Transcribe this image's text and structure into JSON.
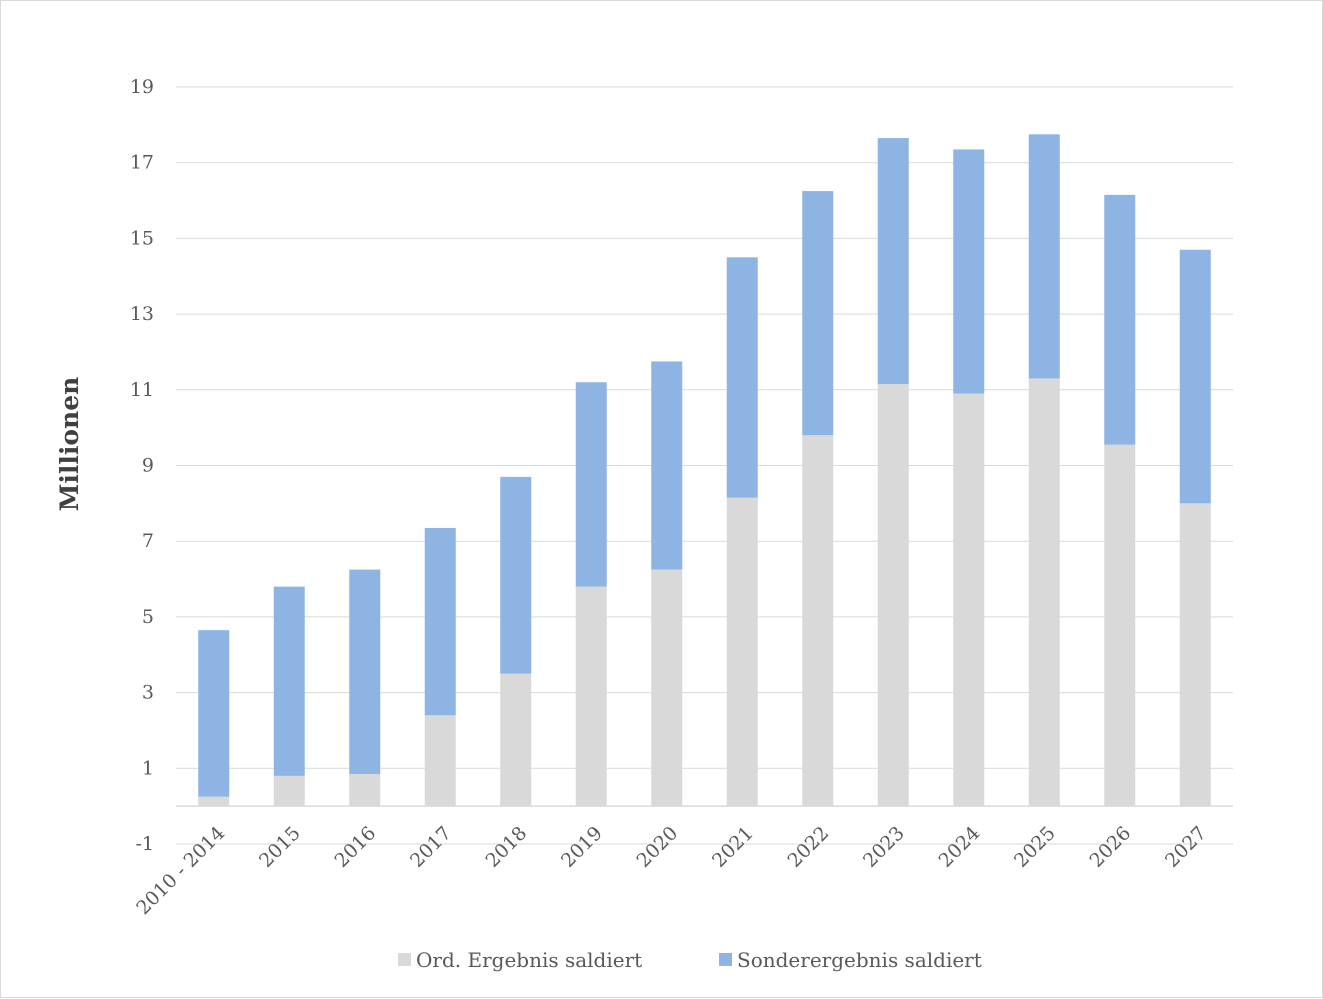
{
  "chart_data": {
    "type": "bar",
    "stacked": true,
    "title": "",
    "xlabel": "",
    "ylabel": "Millionen",
    "ylim": [
      -1,
      19
    ],
    "yticks": [
      -1,
      1,
      3,
      5,
      7,
      9,
      11,
      13,
      15,
      17,
      19
    ],
    "grid": true,
    "legend_position": "bottom",
    "categories": [
      "2010 - 2014",
      "2015",
      "2016",
      "2017",
      "2018",
      "2019",
      "2020",
      "2021",
      "2022",
      "2023",
      "2024",
      "2025",
      "2026",
      "2027"
    ],
    "series": [
      {
        "name": "Ord. Ergebnis saldiert",
        "color": "#d9d9d9",
        "values": [
          0.25,
          0.8,
          0.85,
          2.4,
          3.5,
          5.8,
          6.25,
          8.15,
          9.8,
          11.15,
          10.9,
          11.3,
          9.55,
          8.0
        ]
      },
      {
        "name": "Sonderergebnis saldiert",
        "color": "#8eb4e3",
        "values": [
          4.4,
          5.0,
          5.4,
          4.95,
          5.2,
          5.4,
          5.5,
          6.35,
          6.45,
          6.5,
          6.45,
          6.45,
          6.6,
          6.7
        ]
      }
    ]
  }
}
